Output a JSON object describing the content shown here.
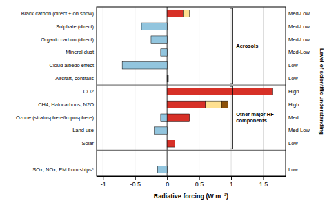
{
  "chart_data": {
    "type": "bar",
    "orientation": "horizontal",
    "categories": [
      "Black carbon (direct + on snow)",
      "Sulphate (direct)",
      "Organic carbon (direct)",
      "Mineral dust",
      "Cloud albedo effect",
      "Aircraft, contrails",
      "CO2",
      "CH4, Halocarbons, N2O",
      "Ozone (stratosphere/troposphere)",
      "Land use",
      "Solar",
      null,
      "SOx, NOx, PM from ships*"
    ],
    "values": [
      [
        {
          "start": 0,
          "width": 0.25,
          "color": "#d73027"
        },
        {
          "start": 0.25,
          "width": 0.1,
          "color": "#fee090"
        }
      ],
      [
        {
          "start": -0.4,
          "width": 0.4,
          "color": "#92c5de"
        }
      ],
      [
        {
          "start": -0.25,
          "width": 0.25,
          "color": "#92c5de"
        }
      ],
      [
        {
          "start": -0.1,
          "width": 0.1,
          "color": "#92c5de"
        }
      ],
      [
        {
          "start": -0.7,
          "width": 0.7,
          "color": "#92c5de"
        }
      ],
      [
        {
          "start": 0,
          "width": 0.02,
          "color": "#333333"
        }
      ],
      [
        {
          "start": 0,
          "width": 1.65,
          "color": "#d73027"
        }
      ],
      [
        {
          "start": 0,
          "width": 0.6,
          "color": "#d73027"
        },
        {
          "start": 0.6,
          "width": 0.25,
          "color": "#fee090"
        },
        {
          "start": 0.85,
          "width": 0.1,
          "color": "#8c510a"
        }
      ],
      [
        {
          "start": -0.1,
          "width": 0.1,
          "color": "#92c5de"
        },
        {
          "start": 0,
          "width": 0.35,
          "color": "#d73027"
        }
      ],
      [
        {
          "start": -0.2,
          "width": 0.2,
          "color": "#92c5de"
        }
      ],
      [
        {
          "start": 0,
          "width": 0.12,
          "color": "#d73027"
        }
      ],
      [],
      [
        {
          "start": -0.15,
          "width": 0.15,
          "color": "#92c5de"
        }
      ]
    ],
    "levels": [
      "Med-Low",
      "Med-Low",
      "Med-Low",
      "Med-Low",
      "Low",
      "Low",
      "High",
      "High",
      "Med",
      "Med-Low",
      "Low",
      null,
      "Low"
    ],
    "xlabel": "Radiative forcing (W m⁻²)",
    "y2label": "Level of scientific understanding",
    "annotations": [
      {
        "text": "Aerosols",
        "rows": [
          0,
          5
        ]
      },
      {
        "text": "Other major RF\ncomponents",
        "rows": [
          6,
          10
        ]
      }
    ],
    "xlim": [
      -1.1,
      1.85
    ],
    "xticks": [
      -1,
      -0.5,
      0,
      0.5,
      1,
      1.5
    ],
    "grid": true
  }
}
